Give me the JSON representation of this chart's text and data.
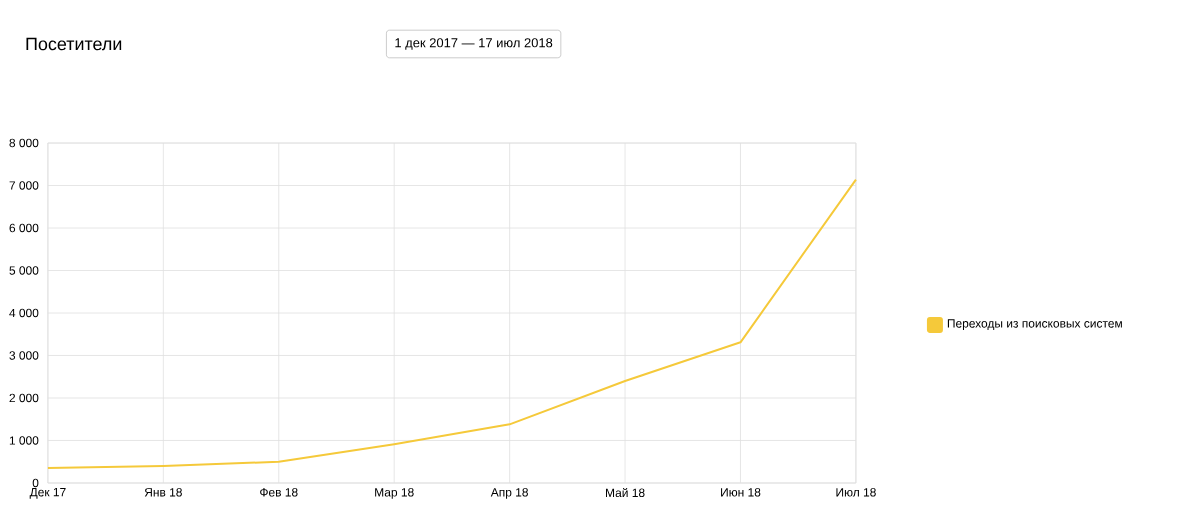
{
  "chart_data": {
    "type": "line",
    "title": "Посетители",
    "subtitle": "1 дек 2017 — 17 июл 2018",
    "categories": [
      "Дек 17",
      "Янв 18",
      "Фев 18",
      "Мар 18",
      "Апр 18",
      "Май 18",
      "Июн 18",
      "Июл 18"
    ],
    "series": [
      {
        "name": "Переходы из поисковых систем",
        "color": "#f5c93a",
        "values": [
          350,
          400,
          500,
          910,
          1380,
          2400,
          3310,
          7140
        ]
      }
    ],
    "ylim": [
      0,
      8000
    ],
    "yticks": [
      0,
      {
        "value": 1000,
        "label": "1 000"
      },
      {
        "value": 2000,
        "label": "2 000"
      },
      {
        "value": 3000,
        "label": "3 000"
      },
      {
        "value": 4000,
        "label": "4 000"
      },
      {
        "value": 5000,
        "label": "5 000"
      },
      {
        "value": 6000,
        "label": "6 000"
      },
      {
        "value": 7000,
        "label": "7 000"
      },
      {
        "value": 8000,
        "label": "8 000"
      }
    ],
    "grid": true,
    "legend": "right",
    "marker": "none",
    "line_style": "solid"
  }
}
